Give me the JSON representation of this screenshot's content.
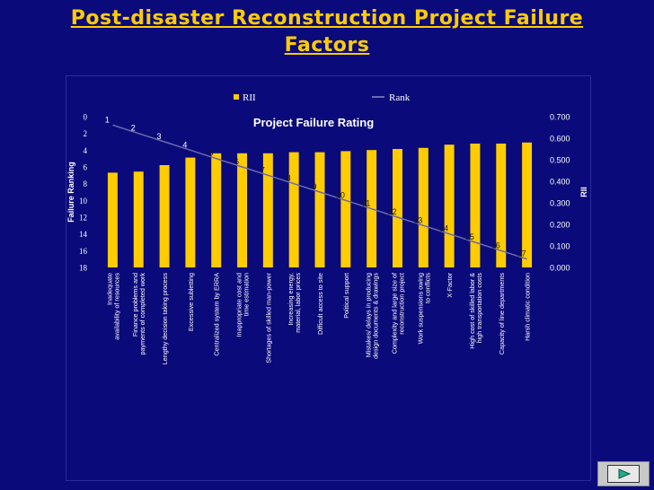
{
  "slide": {
    "title_line1": "Post-disaster Reconstruction Project Failure ",
    "title_line2": "Factors"
  },
  "nav": {
    "icon": "play-next-icon"
  },
  "chart_data": {
    "type": "bar",
    "title": "Project Failure Rating",
    "categories": [
      "Inadequate availability of resources",
      "Finance problems and payments of completed work",
      "Lengthy decision taking process",
      "Excessive subletting",
      "Centralized system by ERRA",
      "Inappropriate cost and time estimation",
      "Shortages of skilled man-power",
      "Increasing energy, material, labor prices",
      "Difficult access to site",
      "Political support",
      "Mistakes/ delays in producing design documents & drawings",
      "Complexity and large size of reconstruction project",
      "Work suspensions owing to conflicts",
      "X-Factor",
      "High cost of skilled labor & high transportation costs",
      "Capacity of line departments",
      "Harsh climatic condition"
    ],
    "series": [
      {
        "name": "RII",
        "type": "bar",
        "axis": "right",
        "color": "#ffcc00",
        "values": [
          0.44,
          0.445,
          0.475,
          0.51,
          0.53,
          0.53,
          0.53,
          0.535,
          0.535,
          0.54,
          0.545,
          0.55,
          0.555,
          0.57,
          0.575,
          0.575,
          0.58
        ]
      },
      {
        "name": "Rank",
        "type": "line",
        "axis": "left",
        "color": "#6a6ab0",
        "values": [
          1,
          2,
          3,
          4,
          5,
          6,
          7,
          8,
          9,
          10,
          11,
          12,
          13,
          14,
          15,
          16,
          17
        ]
      }
    ],
    "ylabel_left": "Failure Ranking",
    "ylabel_right": "RII",
    "ylim_left": [
      0,
      18
    ],
    "ylim_left_inverted": true,
    "yticks_left": [
      "0",
      "2",
      "4",
      "6",
      "8",
      "10",
      "12",
      "14",
      "16",
      "18"
    ],
    "ylim_right": [
      0,
      0.7
    ],
    "yticks_right": [
      "0.000",
      "0.100",
      "0.200",
      "0.300",
      "0.400",
      "0.500",
      "0.600",
      "0.700"
    ],
    "legend_position": "top",
    "grid": false
  }
}
